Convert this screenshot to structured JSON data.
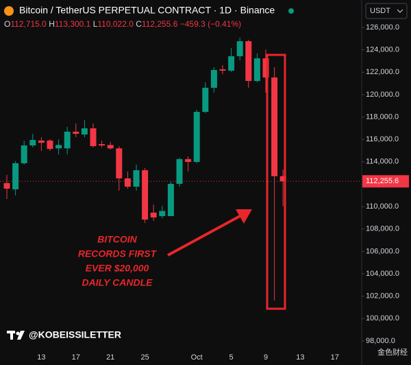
{
  "chart_data": {
    "type": "candlestick",
    "title": "Bitcoin / TetherUS PERPETUAL CONTRACT · 1D · Binance",
    "ohlc_header": [
      {
        "key": "O",
        "value": "112,715.0"
      },
      {
        "key": "H",
        "value": "113,300.1"
      },
      {
        "key": "L",
        "value": "110,022.0"
      },
      {
        "key": "C",
        "value": "112,255.6"
      }
    ],
    "change": "−459.3 (−0.41%)",
    "currency": "USDT",
    "categories": [
      null,
      null,
      null,
      null,
      "13",
      null,
      null,
      null,
      "17",
      null,
      null,
      null,
      "21",
      null,
      null,
      null,
      "25",
      null,
      null,
      null,
      null,
      null,
      "Oct",
      null,
      null,
      null,
      "5",
      null,
      null,
      null,
      "9",
      null,
      null,
      null,
      "13",
      null,
      null,
      null,
      "17",
      null,
      null
    ],
    "open": [
      112100,
      111540,
      113870,
      115460,
      115900,
      115900,
      115200,
      115200,
      116690,
      116440,
      116990,
      115580,
      115500,
      115200,
      112520,
      111780,
      113250,
      109460,
      109150,
      109150,
      112030,
      114240,
      113990,
      118460,
      120610,
      122260,
      122140,
      123430,
      124770,
      121220,
      123240,
      121530,
      112715,
      null,
      null,
      null,
      null,
      null,
      null,
      null,
      null
    ],
    "high": [
      112830,
      114060,
      115890,
      116500,
      116200,
      116010,
      116010,
      117120,
      117420,
      117730,
      117420,
      115890,
      115770,
      115400,
      113130,
      113750,
      113440,
      110190,
      110070,
      112210,
      114360,
      114480,
      118650,
      121100,
      122450,
      122630,
      124160,
      125080,
      124900,
      123670,
      124040,
      122450,
      113300.1,
      null,
      null,
      null,
      null,
      null,
      null,
      null,
      null
    ],
    "low": [
      110680,
      110990,
      113750,
      115280,
      114970,
      114970,
      114660,
      114660,
      116200,
      116200,
      115280,
      115280,
      115090,
      111420,
      111600,
      111420,
      108540,
      108720,
      108970,
      109340,
      111780,
      113130,
      113870,
      118340,
      120180,
      121830,
      122020,
      123060,
      120610,
      121100,
      120180,
      101610,
      110022,
      null,
      null,
      null,
      null,
      null,
      null,
      null,
      null
    ],
    "close": [
      111600,
      113870,
      115460,
      115950,
      115700,
      115150,
      115500,
      116690,
      116500,
      116990,
      115400,
      115460,
      115200,
      112520,
      111780,
      113250,
      108840,
      109030,
      109610,
      112030,
      114240,
      113990,
      118460,
      120610,
      122200,
      122140,
      123430,
      124770,
      121220,
      123240,
      121530,
      112715,
      112255.6,
      null,
      null,
      null,
      null,
      null,
      null,
      null,
      null
    ],
    "up_color": "#089981",
    "down_color": "#f23645",
    "ylim": [
      97200,
      128450
    ],
    "yticks": [
      {
        "value": 98000,
        "label": "98,000.0"
      },
      {
        "value": 100000,
        "label": "100,000.0"
      },
      {
        "value": 102000,
        "label": "102,000.0"
      },
      {
        "value": 104000,
        "label": "104,000.0"
      },
      {
        "value": 106000,
        "label": "106,000.0"
      },
      {
        "value": 108000,
        "label": "108,000.0"
      },
      {
        "value": 110000,
        "label": "110,000.0"
      },
      {
        "value": 112000,
        "label": "112,000.0"
      },
      {
        "value": 114000,
        "label": "114,000.0"
      },
      {
        "value": 116000,
        "label": "116,000.0"
      },
      {
        "value": 118000,
        "label": "118,000.0"
      },
      {
        "value": 120000,
        "label": "120,000.0"
      },
      {
        "value": 122000,
        "label": "122,000.0"
      },
      {
        "value": 124000,
        "label": "124,000.0"
      },
      {
        "value": 126000,
        "label": "126,000.0"
      }
    ],
    "last_price": {
      "value": 112255.6,
      "label": "112,255.6"
    },
    "grid": false,
    "annotation": [
      "BITCOIN",
      "RECORDS FIRST",
      "EVER $20,000",
      "DAILY CANDLE"
    ],
    "watermark": "@KOBEISSILETTER",
    "source_mark": "金色财经"
  }
}
